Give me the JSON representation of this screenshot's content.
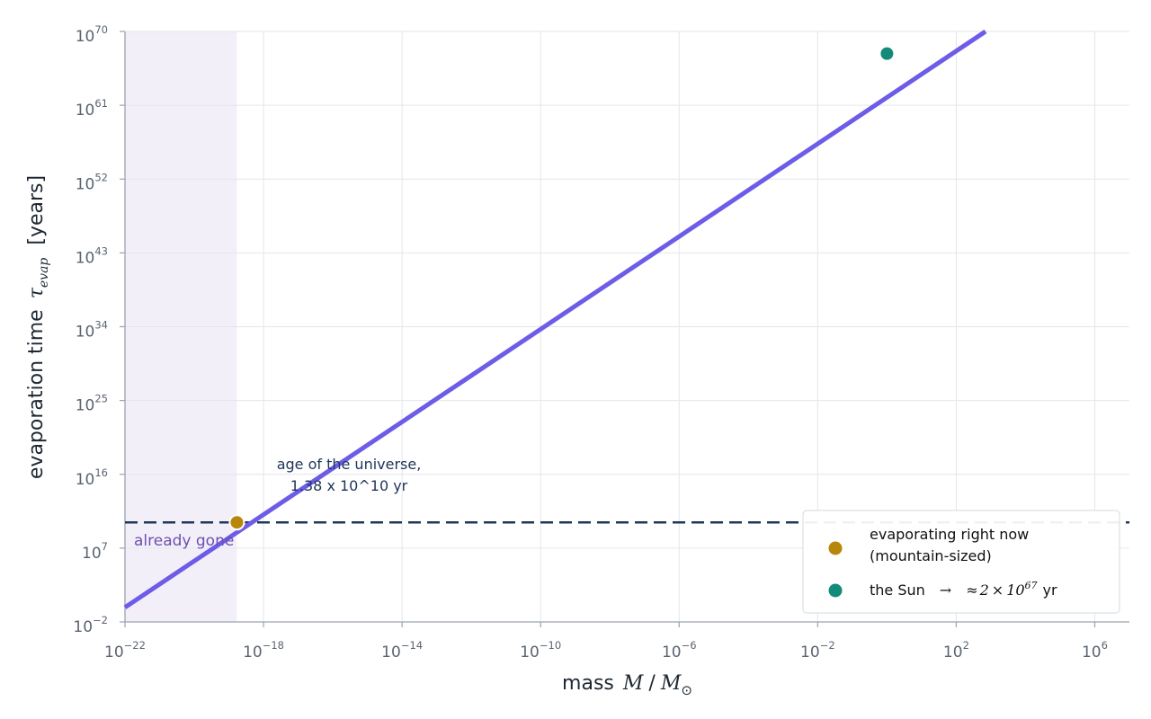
{
  "chart_data": {
    "type": "line",
    "x_scale": "log",
    "y_scale": "log",
    "xlim": [
      1e-22,
      10000000.0
    ],
    "ylim": [
      0.01,
      1e+70
    ],
    "grid": true,
    "legend_position": "bottom-right",
    "xlabel": {
      "prefix": "mass",
      "var": "M",
      "sep": "/",
      "unit": "M",
      "unit_sub": "⊙"
    },
    "ylabel": {
      "prefix": "evaporation time",
      "var": "τ",
      "sub": "evap",
      "suffix": "[years]"
    },
    "x_ticks": [
      {
        "base": "10",
        "exp": "−22",
        "value": 1e-22
      },
      {
        "base": "10",
        "exp": "−18",
        "value": 1e-18
      },
      {
        "base": "10",
        "exp": "−14",
        "value": 1e-14
      },
      {
        "base": "10",
        "exp": "−10",
        "value": 1e-10
      },
      {
        "base": "10",
        "exp": "−6",
        "value": 1e-06
      },
      {
        "base": "10",
        "exp": "−2",
        "value": 0.01
      },
      {
        "base": "10",
        "exp": "2",
        "value": 100.0
      },
      {
        "base": "10",
        "exp": "6",
        "value": 1000000.0
      }
    ],
    "y_ticks": [
      {
        "base": "10",
        "exp": "−2",
        "value": 0.01
      },
      {
        "base": "10",
        "exp": "7",
        "value": 10000000.0
      },
      {
        "base": "10",
        "exp": "16",
        "value": 1e+16
      },
      {
        "base": "10",
        "exp": "25",
        "value": 1e+25
      },
      {
        "base": "10",
        "exp": "34",
        "value": 1e+34
      },
      {
        "base": "10",
        "exp": "43",
        "value": 1e+43
      },
      {
        "base": "10",
        "exp": "52",
        "value": 1e+52
      },
      {
        "base": "10",
        "exp": "61",
        "value": 1e+61
      },
      {
        "base": "10",
        "exp": "70",
        "value": 1e+70
      }
    ],
    "curve": {
      "x": [
        1e-22,
        700.0
      ],
      "y": [
        0.6,
        1e+70
      ],
      "color": "#6c5ce7"
    },
    "already_gone_region": {
      "x": [
        1e-22,
        1.7e-19
      ],
      "label": "already gone",
      "color": "#ece6f6"
    },
    "age_of_universe": {
      "y": 13800000000.0,
      "label_line1": "age of the universe,",
      "label_line2": "1.38 x 10^10 yr",
      "color": "#20365a"
    },
    "points": [
      {
        "x": 1.7e-19,
        "y": 13800000000.0,
        "color": "#b8860b"
      },
      {
        "x": 1,
        "y": 2e+67,
        "color": "#148a7a"
      }
    ],
    "legend": [
      {
        "label_line1": "evaporating right now",
        "label_line2": "(mountain-sized)",
        "color": "#b8860b"
      },
      {
        "text": "the Sun",
        "arrow": "→",
        "approx": "≈",
        "mantissa": "2",
        "times": "×",
        "base": "10",
        "exp": "67",
        "unit": "yr",
        "color": "#148a7a"
      }
    ]
  }
}
